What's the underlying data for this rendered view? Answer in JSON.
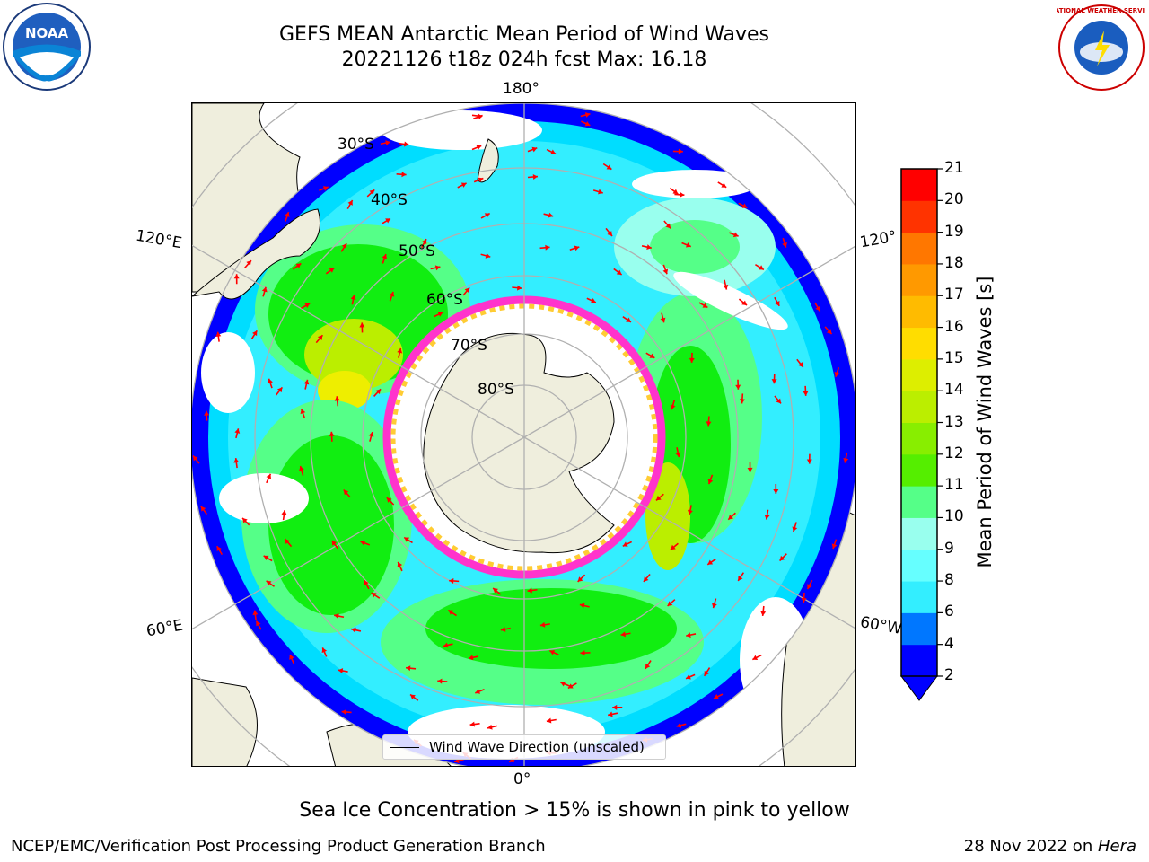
{
  "header": {
    "title_line1": "GEFS MEAN Antarctic Mean Period of Wind Waves",
    "title_line2": "20221126 t18z 024h fcst   Max: 16.18"
  },
  "map": {
    "projection": "south polar stereographic",
    "lon_labels": {
      "top": "180°",
      "bottom": "0°",
      "upper_left": "120°E",
      "upper_right": "120°",
      "lower_left": "60°E",
      "lower_right": "60°W"
    },
    "lat_labels": [
      "30°S",
      "40°S",
      "50°S",
      "60°S",
      "70°S",
      "80°S"
    ],
    "legend_label": "Wind Wave Direction (unscaled)",
    "colors": {
      "land": "#efeedd",
      "arrows": "#ff0000",
      "grid": "#b0b0b0",
      "sea_ice_low": "#ff33cc",
      "sea_ice_high": "#ffcc33"
    }
  },
  "colorbar": {
    "label": "Mean Period of Wind Waves [s]",
    "ticks": [
      "21",
      "20",
      "19",
      "18",
      "17",
      "16",
      "15",
      "14",
      "13",
      "12",
      "11",
      "10",
      "9",
      "8",
      "6",
      "4",
      "2"
    ],
    "colors": [
      "#0000ff",
      "#0077ff",
      "#00ddff",
      "#33eeff",
      "#66ffff",
      "#99ffee",
      "#55ff88",
      "#11ee11",
      "#55ee00",
      "#88ee00",
      "#bbee00",
      "#ddee00",
      "#eeee00",
      "#ffdd00",
      "#ffbb00",
      "#ff9900",
      "#ff7700",
      "#ff5500",
      "#ff3300",
      "#ff0000"
    ]
  },
  "caption": "Sea Ice Concentration > 15% is shown in pink to yellow",
  "footer": {
    "left": "NCEP/EMC/Verification Post Processing Product Generation Branch",
    "right_prefix": "28 Nov 2022 on ",
    "right_machine": "Hera"
  },
  "logos": {
    "noaa_text": "NOAA",
    "nws_text": "NATIONAL WEATHER SERVICE"
  }
}
